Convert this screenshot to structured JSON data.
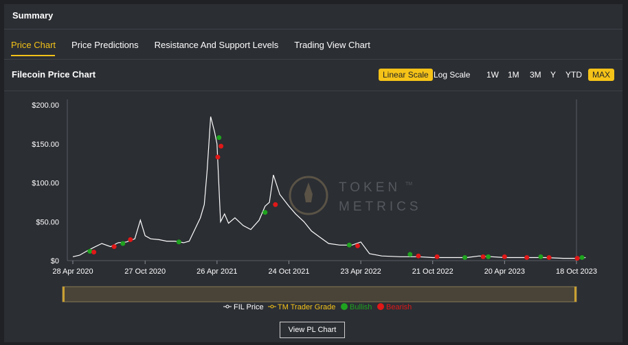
{
  "summary": "Summary",
  "tabs": [
    "Price Chart",
    "Price Predictions",
    "Resistance And Support Levels",
    "Trading View Chart"
  ],
  "chart_title": "Filecoin Price Chart",
  "scale_buttons": [
    "Linear Scale",
    "Log Scale"
  ],
  "range_buttons": [
    "1W",
    "1M",
    "3M",
    "Y",
    "YTD",
    "MAX"
  ],
  "active_scale": "Linear Scale",
  "active_range": "MAX",
  "watermark": {
    "line1": "TOKEN",
    "line2": "METRICS",
    "tm": "TM"
  },
  "legend": [
    "FIL Price",
    "TM Trader Grade",
    "Bullish",
    "Bearish"
  ],
  "view_pl_label": "View PL Chart",
  "colors": {
    "accent": "#f5c318",
    "price": "#ffffff",
    "bullish": "#1fa31f",
    "bearish": "#e01818",
    "navigator": "#4a4438"
  },
  "chart_data": {
    "type": "line",
    "xlabel": "",
    "ylabel": "",
    "ylim": [
      0,
      200
    ],
    "y_ticks": [
      "$0",
      "$50.00",
      "$100.00",
      "$150.00",
      "$200.00"
    ],
    "x_ticks": [
      "28 Apr 2020",
      "27 Oct 2020",
      "26 Apr 2021",
      "24 Oct 2021",
      "23 Apr 2022",
      "21 Oct 2022",
      "20 Apr 2023",
      "18 Oct 2023"
    ],
    "series": [
      {
        "name": "FIL Price",
        "x": [
          "2020-04-28",
          "2020-05-15",
          "2020-06-01",
          "2020-06-20",
          "2020-07-10",
          "2020-08-01",
          "2020-08-20",
          "2020-09-10",
          "2020-10-01",
          "2020-10-15",
          "2020-10-27",
          "2020-11-10",
          "2020-12-01",
          "2020-12-20",
          "2021-01-10",
          "2021-02-01",
          "2021-02-15",
          "2021-03-01",
          "2021-03-15",
          "2021-03-25",
          "2021-04-01",
          "2021-04-10",
          "2021-04-20",
          "2021-04-26",
          "2021-05-05",
          "2021-05-15",
          "2021-05-25",
          "2021-06-10",
          "2021-07-01",
          "2021-07-20",
          "2021-08-10",
          "2021-08-25",
          "2021-09-05",
          "2021-09-15",
          "2021-10-01",
          "2021-10-24",
          "2021-11-10",
          "2021-12-01",
          "2021-12-20",
          "2022-01-10",
          "2022-02-01",
          "2022-03-01",
          "2022-04-01",
          "2022-04-23",
          "2022-05-15",
          "2022-06-15",
          "2022-08-01",
          "2022-09-15",
          "2022-10-21",
          "2022-12-01",
          "2023-01-15",
          "2023-02-15",
          "2023-04-20",
          "2023-06-15",
          "2023-08-01",
          "2023-09-15",
          "2023-10-18",
          "2023-11-10"
        ],
        "values": [
          5,
          7,
          12,
          17,
          22,
          18,
          23,
          24,
          28,
          52,
          32,
          28,
          27,
          25,
          25,
          23,
          25,
          40,
          55,
          72,
          115,
          185,
          165,
          150,
          50,
          60,
          48,
          55,
          45,
          40,
          52,
          70,
          75,
          110,
          85,
          70,
          60,
          50,
          38,
          30,
          22,
          20,
          20,
          24,
          9,
          6,
          5,
          5,
          4,
          4,
          4,
          6,
          4,
          4,
          4,
          3,
          3,
          4
        ]
      }
    ],
    "bullish": [
      {
        "x": "2020-06-10",
        "y": 12
      },
      {
        "x": "2020-09-01",
        "y": 22
      },
      {
        "x": "2021-01-20",
        "y": 24
      },
      {
        "x": "2021-05-01",
        "y": 158
      },
      {
        "x": "2021-08-25",
        "y": 62
      },
      {
        "x": "2022-03-25",
        "y": 20
      },
      {
        "x": "2022-08-25",
        "y": 8
      },
      {
        "x": "2023-01-10",
        "y": 4
      },
      {
        "x": "2023-03-10",
        "y": 5
      },
      {
        "x": "2023-07-20",
        "y": 5
      },
      {
        "x": "2023-11-01",
        "y": 4
      }
    ],
    "bearish": [
      {
        "x": "2020-06-20",
        "y": 11
      },
      {
        "x": "2020-08-10",
        "y": 18
      },
      {
        "x": "2020-09-20",
        "y": 27
      },
      {
        "x": "2021-04-28",
        "y": 133
      },
      {
        "x": "2021-05-06",
        "y": 147
      },
      {
        "x": "2021-09-20",
        "y": 72
      },
      {
        "x": "2022-04-15",
        "y": 19
      },
      {
        "x": "2022-09-15",
        "y": 6
      },
      {
        "x": "2022-11-01",
        "y": 5
      },
      {
        "x": "2023-02-25",
        "y": 5
      },
      {
        "x": "2023-04-20",
        "y": 5
      },
      {
        "x": "2023-06-15",
        "y": 4
      },
      {
        "x": "2023-08-10",
        "y": 4
      },
      {
        "x": "2023-10-20",
        "y": 3
      }
    ]
  }
}
